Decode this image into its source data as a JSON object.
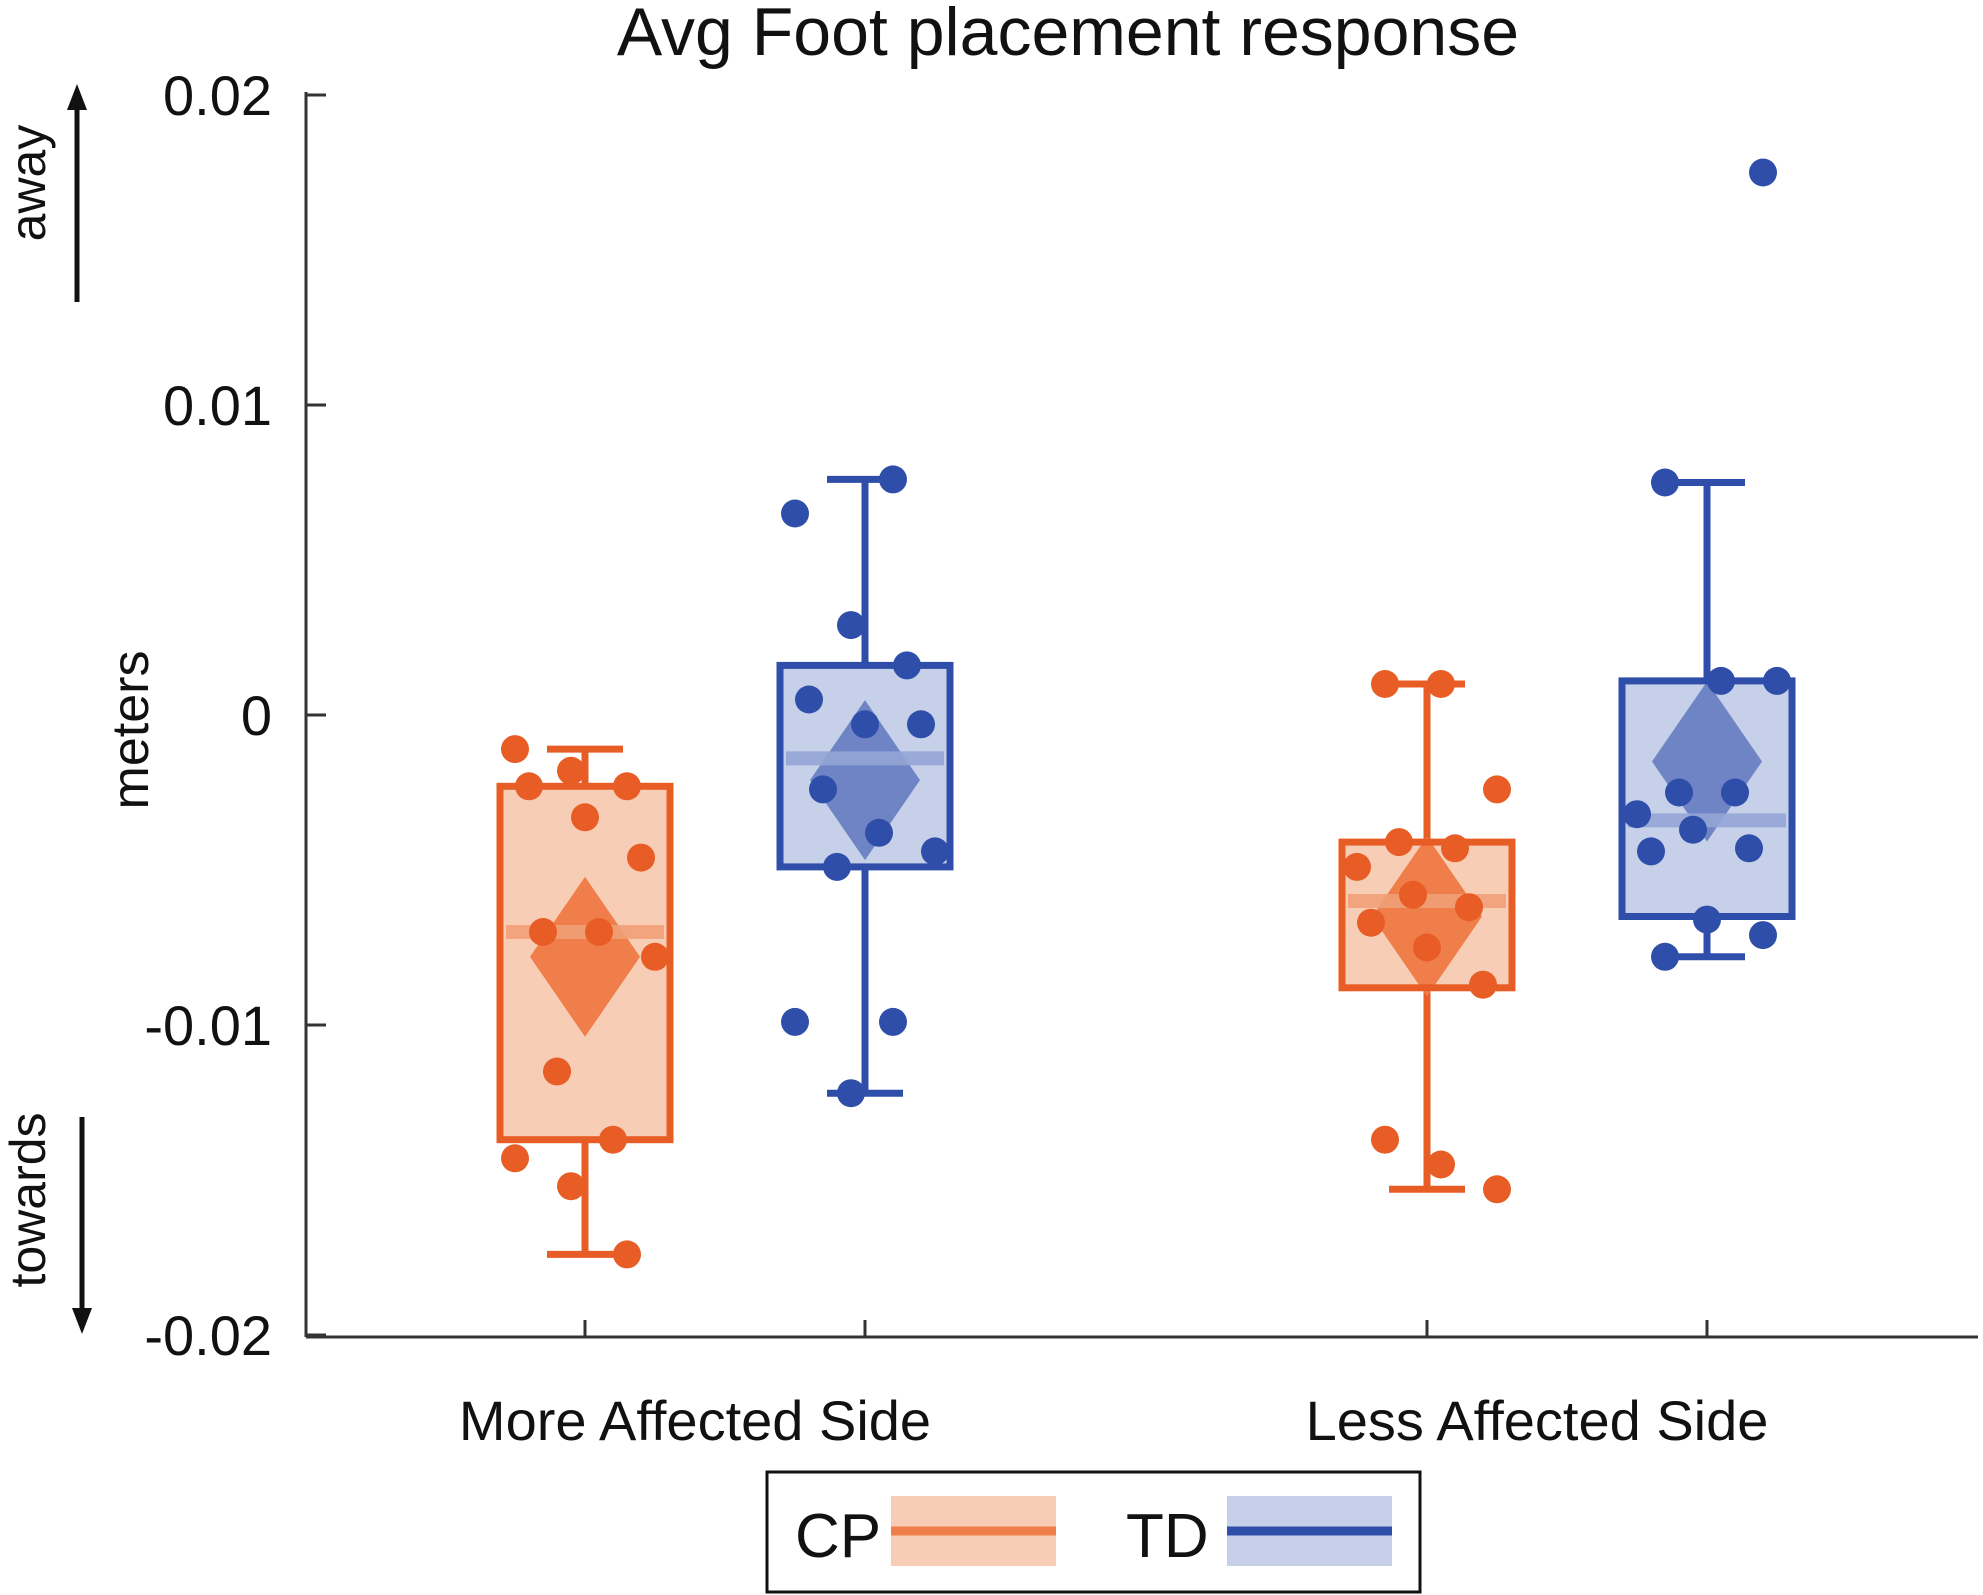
{
  "chart_data": {
    "type": "box",
    "title": "Avg Foot placement response",
    "ylabel": "meters",
    "ylim": [
      -0.02,
      0.02
    ],
    "yticks": [
      0.02,
      0.01,
      0,
      -0.01,
      -0.02
    ],
    "ytick_labels": [
      "0.02",
      "0.01",
      "0",
      "-0.01",
      "-0.02"
    ],
    "direction_labels": {
      "up": "away",
      "down": "towards"
    },
    "categories": [
      "More Affected Side",
      "Less Affected Side"
    ],
    "legend": {
      "position": "bottom-center",
      "entries": [
        "CP",
        "TD"
      ]
    },
    "series": [
      {
        "name": "CP",
        "color": "#e85d25",
        "fill": "#f8cdb6",
        "median_color": "#f0a078",
        "mean_color": "#ef7e4a",
        "groups": [
          {
            "category": "More Affected Side",
            "whisker_low": -0.0174,
            "q1": -0.0137,
            "median": -0.007,
            "q3": -0.0023,
            "whisker_high": -0.0011,
            "mean": -0.0078,
            "points": [
              -0.0011,
              -0.0018,
              -0.0023,
              -0.0023,
              -0.0033,
              -0.0046,
              -0.007,
              -0.007,
              -0.0078,
              -0.0115,
              -0.0137,
              -0.0143,
              -0.0152,
              -0.0174
            ]
          },
          {
            "category": "Less Affected Side",
            "whisker_low": -0.0153,
            "q1": -0.0088,
            "median": -0.006,
            "q3": -0.0041,
            "whisker_high": 0.001,
            "mean": -0.0065,
            "points": [
              0.001,
              0.001,
              -0.0024,
              -0.0041,
              -0.0043,
              -0.0049,
              -0.0058,
              -0.0062,
              -0.0067,
              -0.0075,
              -0.0087,
              -0.0137,
              -0.0145,
              -0.0153
            ]
          }
        ]
      },
      {
        "name": "TD",
        "color": "#2f4eaa",
        "fill": "#c6d0e8",
        "median_color": "#93a5d6",
        "mean_color": "#6e84c4",
        "groups": [
          {
            "category": "More Affected Side",
            "whisker_low": -0.0122,
            "q1": -0.0049,
            "median": -0.0014,
            "q3": 0.0016,
            "whisker_high": 0.0076,
            "mean": -0.0021,
            "points": [
              0.0076,
              0.0065,
              0.0029,
              0.0016,
              0.0005,
              -0.0003,
              -0.0003,
              -0.0024,
              -0.0038,
              -0.0044,
              -0.0049,
              -0.0099,
              -0.0099,
              -0.0122
            ]
          },
          {
            "category": "Less Affected Side",
            "whisker_low": -0.0078,
            "q1": -0.0065,
            "median": -0.0034,
            "q3": 0.0011,
            "whisker_high": 0.0075,
            "mean": -0.0015,
            "points": [
              0.0175,
              0.0075,
              0.0011,
              0.0011,
              -0.0025,
              -0.0025,
              -0.0032,
              -0.0037,
              -0.0043,
              -0.0044,
              -0.0066,
              -0.0071,
              -0.0078
            ]
          }
        ]
      }
    ]
  }
}
